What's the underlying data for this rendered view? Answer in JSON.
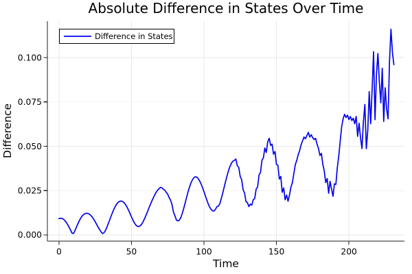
{
  "title": "Absolute Difference in States Over Time",
  "chart_data": {
    "type": "line",
    "title": "Absolute Difference in States Over Time",
    "xlabel": "Time",
    "ylabel": "Difference",
    "grid": true,
    "legend": {
      "position": "top-left",
      "entries": [
        "Difference in States"
      ]
    },
    "xlim": [
      -8,
      238.3
    ],
    "ylim": [
      -0.0035,
      0.1205
    ],
    "xticks": {
      "values": [
        0,
        50,
        100,
        150,
        200
      ],
      "labels": [
        "0",
        "50",
        "100",
        "150",
        "200"
      ]
    },
    "yticks": {
      "values": [
        0,
        0.025,
        0.05,
        0.075,
        0.1
      ],
      "labels": [
        "0.000",
        "0.025",
        "0.050",
        "0.075",
        "0.100"
      ]
    },
    "colors": {
      "line": "#0000ee",
      "grid": "#e7e7e7",
      "axis": "#1c1c1c",
      "background": "#ffffff",
      "text": "#000000"
    },
    "series": [
      {
        "name": "Difference in States",
        "color": "#0000ee",
        "x_start": 0,
        "x_step": 1,
        "values": [
          0.0092,
          0.0094,
          0.0093,
          0.0089,
          0.0082,
          0.0071,
          0.0058,
          0.0043,
          0.0027,
          0.001,
          0.0008,
          0.0024,
          0.0043,
          0.0062,
          0.008,
          0.0095,
          0.0107,
          0.0115,
          0.012,
          0.0122,
          0.0121,
          0.0117,
          0.011,
          0.01,
          0.0088,
          0.0074,
          0.0059,
          0.0044,
          0.003,
          0.0018,
          0.0008,
          0.0012,
          0.0024,
          0.0042,
          0.0063,
          0.0085,
          0.0107,
          0.0128,
          0.0147,
          0.0163,
          0.0176,
          0.0185,
          0.019,
          0.0191,
          0.0188,
          0.0181,
          0.017,
          0.0156,
          0.0139,
          0.0121,
          0.0102,
          0.0084,
          0.0068,
          0.0056,
          0.0049,
          0.0047,
          0.0051,
          0.006,
          0.0074,
          0.0091,
          0.011,
          0.013,
          0.0151,
          0.0171,
          0.019,
          0.0208,
          0.0225,
          0.024,
          0.0252,
          0.0261,
          0.0268,
          0.0266,
          0.0258,
          0.0252,
          0.024,
          0.023,
          0.021,
          0.0195,
          0.017,
          0.0128,
          0.0108,
          0.0084,
          0.0079,
          0.0083,
          0.0097,
          0.012,
          0.0148,
          0.0179,
          0.0211,
          0.0242,
          0.0269,
          0.0292,
          0.031,
          0.0322,
          0.0328,
          0.0326,
          0.0318,
          0.0305,
          0.0288,
          0.0267,
          0.0244,
          0.022,
          0.0196,
          0.0174,
          0.0156,
          0.0143,
          0.0136,
          0.0135,
          0.0145,
          0.016,
          0.0162,
          0.0177,
          0.0206,
          0.0237,
          0.0271,
          0.0304,
          0.0335,
          0.0364,
          0.0387,
          0.0405,
          0.0416,
          0.042,
          0.0428,
          0.039,
          0.0381,
          0.033,
          0.0312,
          0.0255,
          0.0236,
          0.0188,
          0.0182,
          0.016,
          0.0174,
          0.0168,
          0.0198,
          0.0205,
          0.0258,
          0.027,
          0.0338,
          0.0352,
          0.042,
          0.0435,
          0.049,
          0.0465,
          0.0525,
          0.0545,
          0.0505,
          0.0512,
          0.0455,
          0.047,
          0.0398,
          0.0392,
          0.0315,
          0.033,
          0.024,
          0.0265,
          0.0198,
          0.0225,
          0.019,
          0.0225,
          0.027,
          0.0295,
          0.0345,
          0.0396,
          0.042,
          0.0452,
          0.0475,
          0.0508,
          0.053,
          0.0552,
          0.0542,
          0.056,
          0.0578,
          0.0552,
          0.0565,
          0.0548,
          0.0538,
          0.0545,
          0.0512,
          0.0488,
          0.0448,
          0.046,
          0.0398,
          0.036,
          0.0295,
          0.0318,
          0.0235,
          0.0302,
          0.026,
          0.0218,
          0.0288,
          0.0285,
          0.038,
          0.0445,
          0.053,
          0.061,
          0.0655,
          0.068,
          0.0662,
          0.0675,
          0.065,
          0.0668,
          0.0645,
          0.0658,
          0.0627,
          0.0668,
          0.0556,
          0.063,
          0.0548,
          0.0487,
          0.064,
          0.0736,
          0.0486,
          0.059,
          0.0808,
          0.0627,
          0.082,
          0.1033,
          0.065,
          0.0905,
          0.1023,
          0.086,
          0.0745,
          0.094,
          0.064,
          0.083,
          0.071,
          0.0655,
          0.098,
          0.116,
          0.103,
          0.096
        ]
      }
    ]
  }
}
